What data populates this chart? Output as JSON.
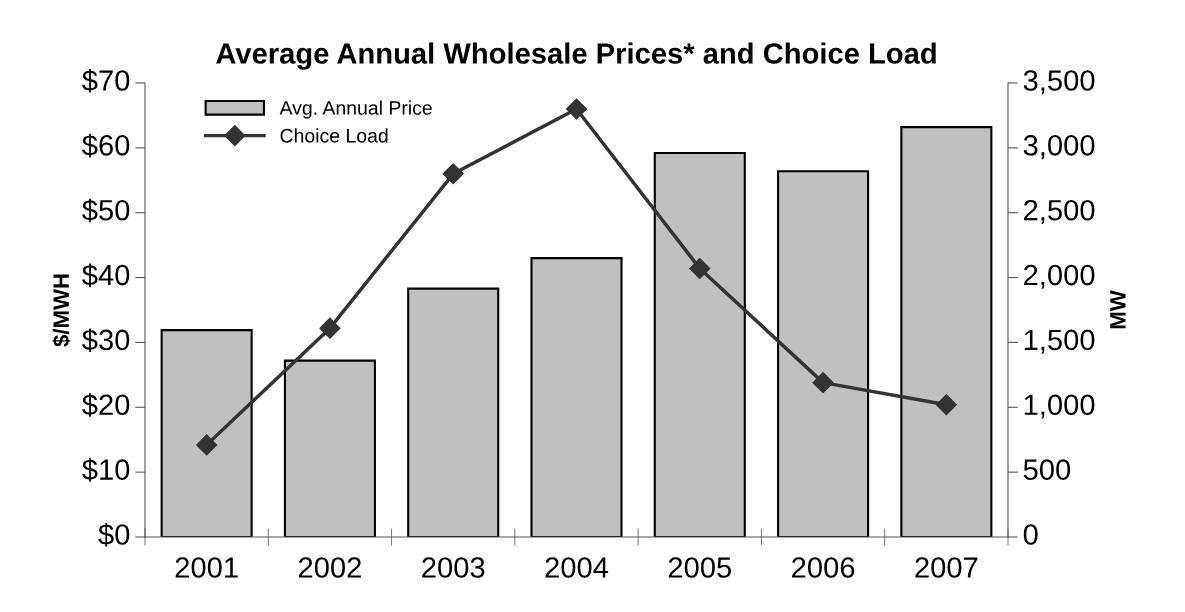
{
  "chart_data": {
    "type": "bar",
    "title": "Average Annual Wholesale Prices* and Choice Load",
    "ylabel": "$/MWH",
    "y2label": "MW",
    "categories": [
      "2001",
      "2002",
      "2003",
      "2004",
      "2005",
      "2006",
      "2007"
    ],
    "series": [
      {
        "name": "Avg. Annual Price",
        "color": "#c0c0c0",
        "values": [
          31.9,
          27.2,
          38.3,
          43.0,
          59.2,
          56.4,
          63.2
        ]
      },
      {
        "name": "Choice Load",
        "type": "line",
        "axis": "y2",
        "color": "#333333",
        "values": [
          710,
          1610,
          2800,
          3300,
          2070,
          1190,
          1020
        ]
      }
    ],
    "ylim": [
      0,
      70
    ],
    "yticks": [
      {
        "value": 0,
        "label": "$0"
      },
      {
        "value": 10,
        "label": "$10"
      },
      {
        "value": 20,
        "label": "$20"
      },
      {
        "value": 30,
        "label": "$30"
      },
      {
        "value": 40,
        "label": "$40"
      },
      {
        "value": 50,
        "label": "$50"
      },
      {
        "value": 60,
        "label": "$60"
      },
      {
        "value": 70,
        "label": "$70"
      }
    ],
    "y2lim": [
      0,
      3500
    ],
    "y2ticks": [
      0,
      500,
      {
        "value": 1000,
        "label": "1,000"
      },
      {
        "value": 1500,
        "label": "1,500"
      },
      {
        "value": 2000,
        "label": "2,000"
      },
      {
        "value": 2500,
        "label": "2,500"
      },
      {
        "value": 3000,
        "label": "3,000"
      },
      {
        "value": 3500,
        "label": "3,500"
      }
    ],
    "marker": "diamond",
    "grid": false,
    "legend": "top left"
  }
}
